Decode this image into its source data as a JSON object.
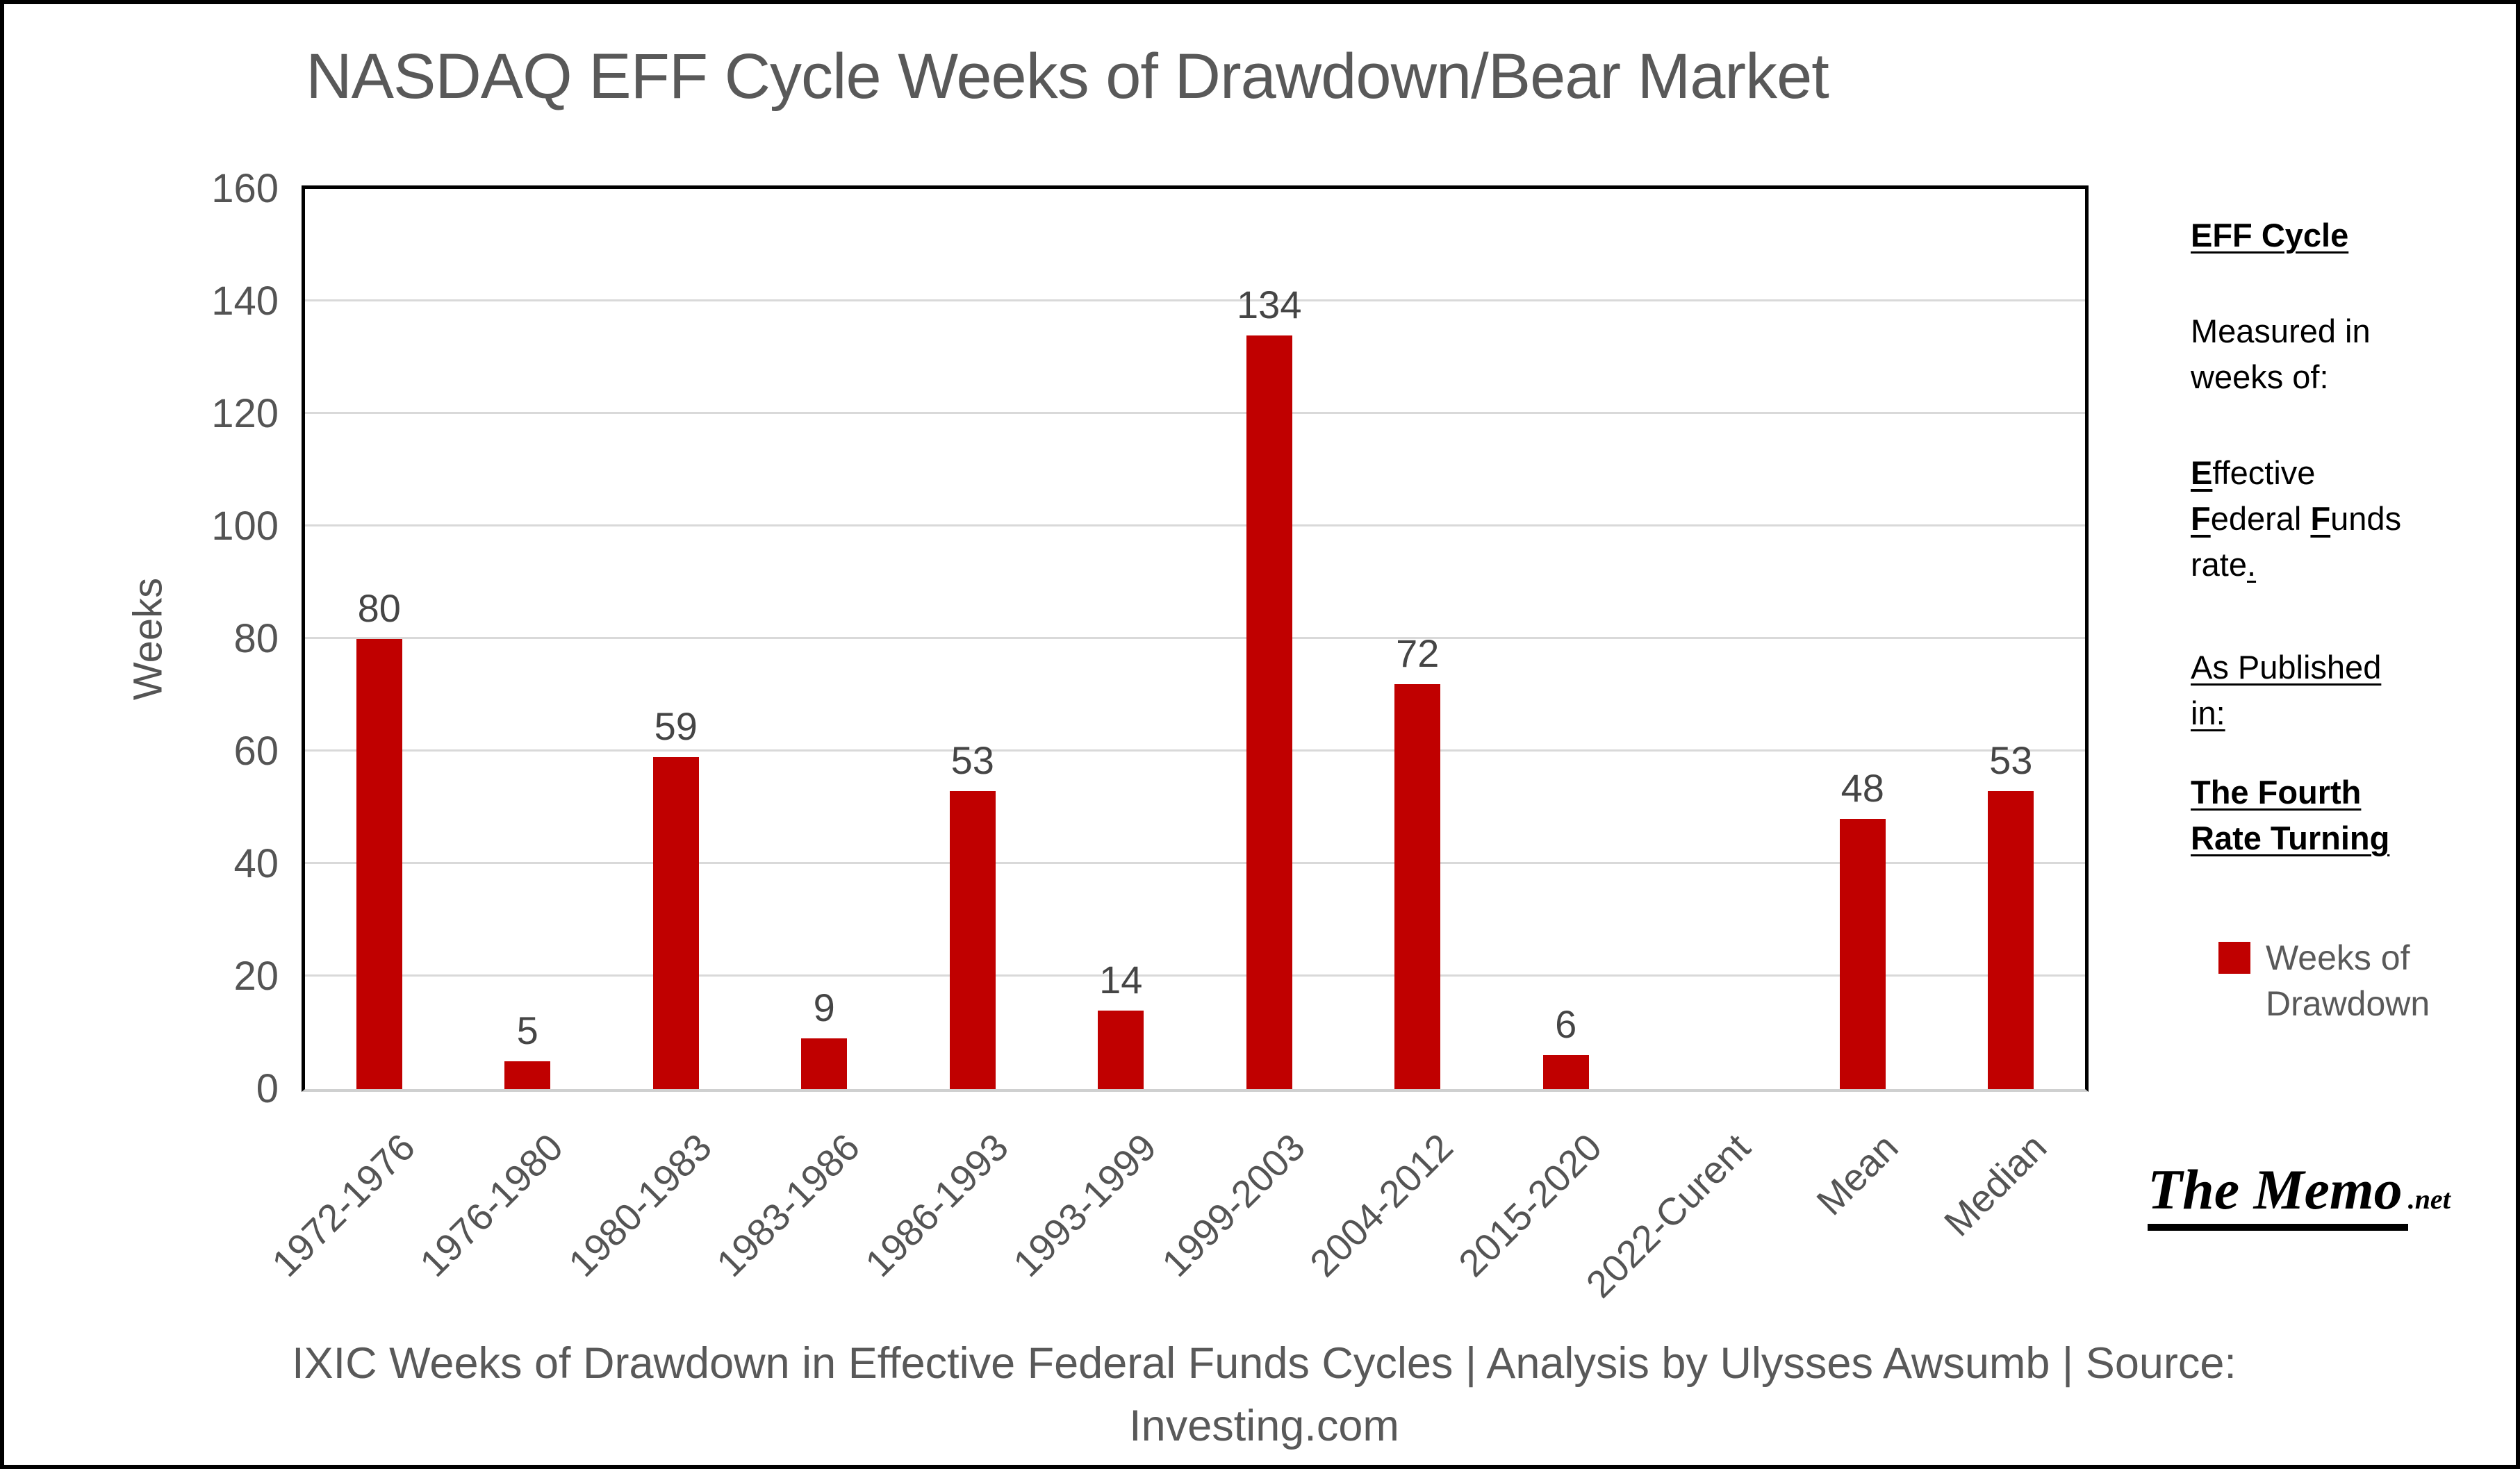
{
  "chart_data": {
    "type": "bar",
    "title": "NASDAQ EFF Cycle Weeks of Drawdown/Bear Market",
    "categories": [
      "1972-1976",
      "1976-1980",
      "1980-1983",
      "1983-1986",
      "1986-1993",
      "1993-1999",
      "1999-2003",
      "2004-2012",
      "2015-2020",
      "2022-Curent",
      "Mean",
      "Median"
    ],
    "values": [
      80,
      5,
      59,
      9,
      53,
      14,
      134,
      72,
      6,
      null,
      48,
      53
    ],
    "xlabel": "",
    "ylabel": "Weeks",
    "ylim": [
      0,
      160
    ],
    "ytick_step": 20,
    "grid": true,
    "legend_position": "right",
    "bar_color": "#C00000",
    "gridline_color": "#d9d9d9",
    "label_color": "#454545",
    "title_color": "#595959"
  },
  "legend": {
    "line1": "Weeks of",
    "line2": "Drawdown"
  },
  "side_panel": {
    "heading": "EFF Cycle",
    "measured_line1": "Measured in",
    "measured_line2": "weeks of:",
    "effective_initial": "E",
    "effective_rest": "ffective",
    "federal_initial": "F",
    "federal_rest": "ederal ",
    "funds_initial": "F",
    "funds_rest": "unds",
    "rate_text": "rate",
    "rate_period": ".",
    "published_line1": "As Published",
    "published_line2": "in:",
    "book_line1": "The Fourth",
    "book_line2": "Rate Turning"
  },
  "logo": {
    "main": "The Memo",
    "suffix": ".net"
  },
  "caption": {
    "line1": "IXIC Weeks of Drawdown in Effective Federal Funds Cycles | Analysis by Ulysses Awsumb | Source:",
    "line2": "Investing.com"
  }
}
